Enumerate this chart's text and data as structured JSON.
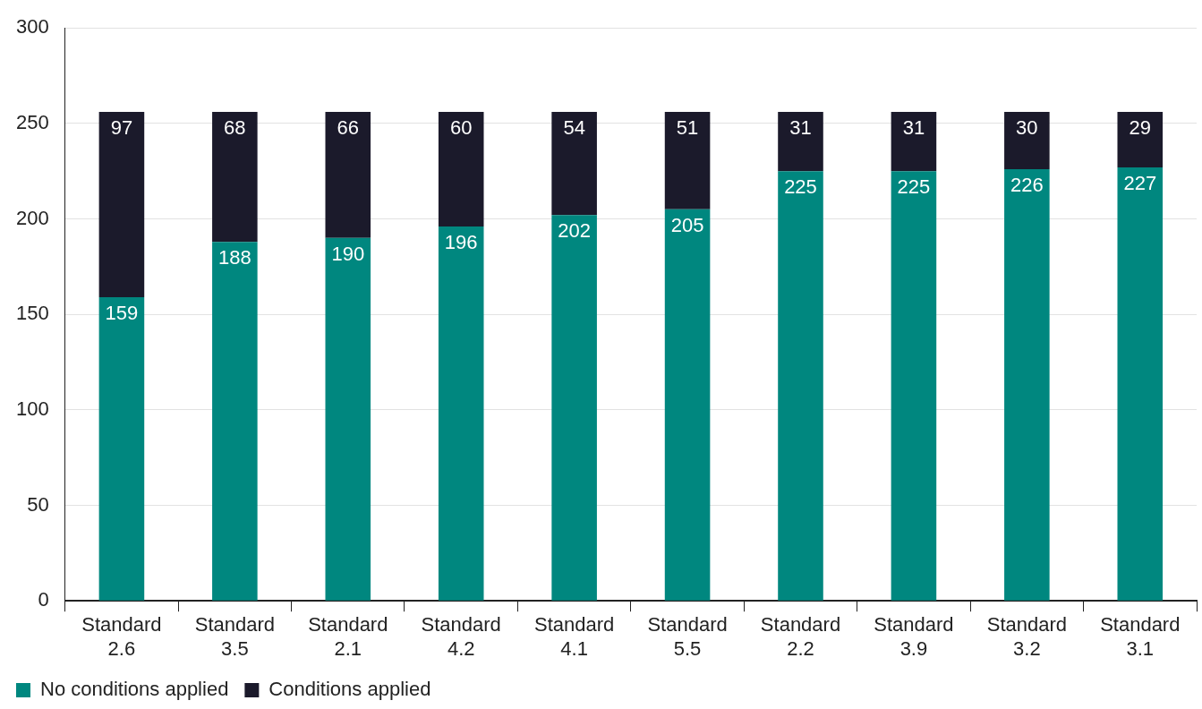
{
  "chart_data": {
    "type": "bar",
    "stacked": true,
    "categories": [
      "Standard 2.6",
      "Standard 3.5",
      "Standard 2.1",
      "Standard 4.2",
      "Standard 4.1",
      "Standard 5.5",
      "Standard 2.2",
      "Standard 3.9",
      "Standard 3.2",
      "Standard 3.1"
    ],
    "series": [
      {
        "name": "No conditions applied",
        "color": "#00877f",
        "values": [
          159,
          188,
          190,
          196,
          202,
          205,
          225,
          225,
          226,
          227
        ]
      },
      {
        "name": "Conditions applied",
        "color": "#1b1a2b",
        "values": [
          97,
          68,
          66,
          60,
          54,
          51,
          31,
          31,
          30,
          29
        ]
      }
    ],
    "ylim": [
      0,
      300
    ],
    "yticks": [
      0,
      50,
      100,
      150,
      200,
      250,
      300
    ],
    "grid": "y",
    "legend": "bottom left",
    "data_labels": true
  }
}
